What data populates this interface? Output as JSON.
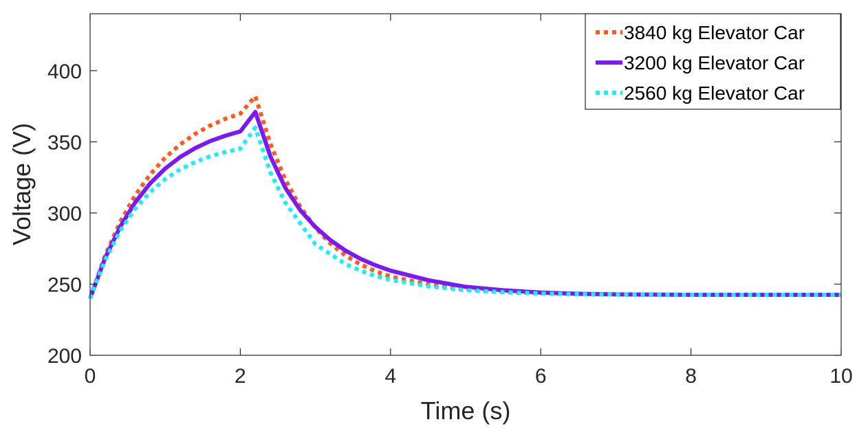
{
  "chart_data": {
    "type": "line",
    "title": "",
    "xlabel": "Time (s)",
    "ylabel": "Voltage (V)",
    "xlim": [
      0,
      10
    ],
    "ylim": [
      200,
      440
    ],
    "xticks": [
      0,
      2,
      4,
      6,
      8,
      10
    ],
    "yticks": [
      200,
      250,
      300,
      350,
      400
    ],
    "xtick_labels": [
      "0",
      "2",
      "4",
      "6",
      "8",
      "10"
    ],
    "ytick_labels": [
      "200",
      "250",
      "300",
      "350",
      "400"
    ],
    "grid": false,
    "legend_position": "top-right",
    "x": [
      0,
      0.2,
      0.4,
      0.6,
      0.8,
      1.0,
      1.2,
      1.4,
      1.6,
      1.8,
      2.0,
      2.2,
      2.4,
      2.6,
      2.8,
      3.0,
      3.2,
      3.4,
      3.6,
      3.8,
      4.0,
      4.5,
      5.0,
      5.5,
      6.0,
      6.5,
      7.0,
      8.0,
      9.0,
      10.0
    ],
    "series": [
      {
        "name": "3840 kg Elevator Car",
        "color": "#ff5a1a",
        "style": "dotted",
        "values": [
          240,
          269.9,
          293.6,
          312.3,
          327.1,
          338.9,
          348.2,
          355.6,
          361.4,
          366.1,
          369.8,
          382,
          348.6,
          323.3,
          304.1,
          289.5,
          278.5,
          270.1,
          263.8,
          259.0,
          255.3,
          249.9,
          246.4,
          244.5,
          243.5,
          243.0,
          242.7,
          242.5,
          242.5,
          242.5
        ]
      },
      {
        "name": "3200 kg Elevator Car",
        "color": "#7b19f5",
        "style": "solid",
        "values": [
          240,
          268.3,
          290.3,
          307.4,
          320.8,
          331.2,
          339.3,
          345.6,
          350.5,
          354.3,
          357.3,
          371,
          339.8,
          317.6,
          301.8,
          290.1,
          280.9,
          273.6,
          267.8,
          263.2,
          259.5,
          252.8,
          248.1,
          245.7,
          244.1,
          243.2,
          242.8,
          242.5,
          242.5,
          242.5
        ]
      },
      {
        "name": "2560 kg Elevator Car",
        "color": "#19f0f5",
        "style": "dotted",
        "values": [
          240,
          266.9,
          287.4,
          302.9,
          314.7,
          323.8,
          330.6,
          335.8,
          339.8,
          342.8,
          345.1,
          360,
          328.5,
          307.1,
          292.6,
          278.0,
          271.1,
          264.1,
          259.5,
          255.7,
          253.0,
          248.5,
          245.7,
          244.3,
          243.4,
          243.0,
          242.7,
          242.5,
          242.5,
          242.5
        ]
      }
    ]
  }
}
